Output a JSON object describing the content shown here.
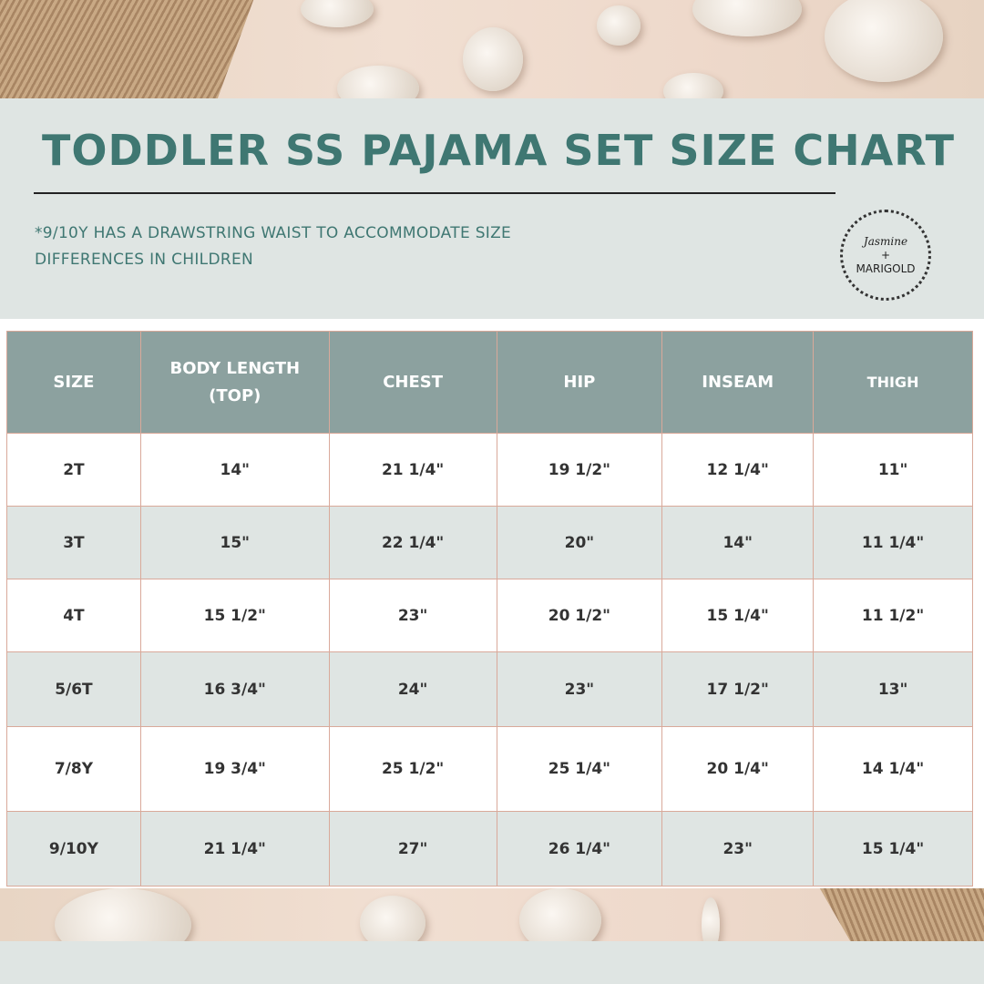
{
  "title": "TODDLER SS PAJAMA SET SIZE CHART",
  "note": "*9/10Y HAS A DRAWSTRING WAIST TO ACCOMMODATE SIZE DIFFERENCES IN CHILDREN",
  "logo": {
    "line1": "Jasmine",
    "line2": "+",
    "line3": "MARIGOLD"
  },
  "colors": {
    "title": "#3f7772",
    "header_bg": "#8ca19f",
    "alt_row": "#dfe5e3",
    "border": "#d9a99a"
  },
  "table": {
    "headers": [
      "SIZE",
      "BODY LENGTH (TOP)",
      "CHEST",
      "HIP",
      "INSEAM",
      "THIGH"
    ],
    "rows": [
      [
        "2T",
        "14\"",
        "21 1/4\"",
        "19 1/2\"",
        "12 1/4\"",
        "11\""
      ],
      [
        "3T",
        "15\"",
        "22 1/4\"",
        "20\"",
        "14\"",
        "11 1/4\""
      ],
      [
        "4T",
        "15 1/2\"",
        "23\"",
        "20 1/2\"",
        "15 1/4\"",
        "11 1/2\""
      ],
      [
        "5/6T",
        "16 3/4\"",
        "24\"",
        "23\"",
        "17 1/2\"",
        "13\""
      ],
      [
        "7/8Y",
        "19 3/4\"",
        "25 1/2\"",
        "25 1/4\"",
        "20 1/4\"",
        "14 1/4\""
      ],
      [
        "9/10Y",
        "21 1/4\"",
        "27\"",
        "26 1/4\"",
        "23\"",
        "15 1/4\""
      ]
    ]
  }
}
